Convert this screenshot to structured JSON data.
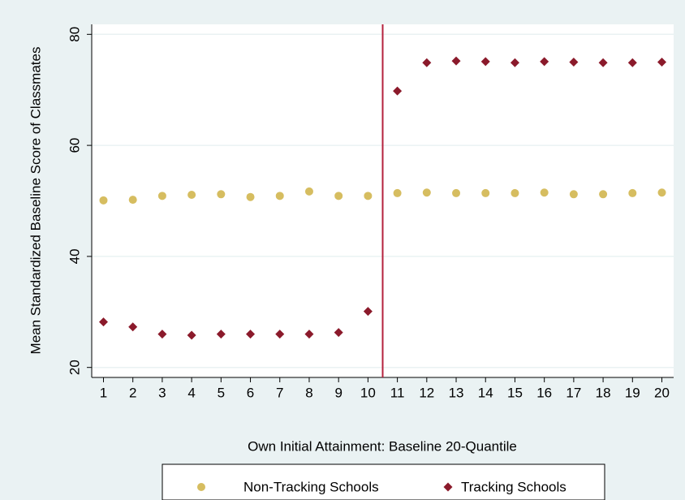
{
  "chart_data": {
    "type": "scatter",
    "y_label": "Mean Standardized Baseline Score of Classmates",
    "x_label": "Own Initial Attainment:  Baseline 20-Quantile",
    "x": [
      1,
      2,
      3,
      4,
      5,
      6,
      7,
      8,
      9,
      10,
      11,
      12,
      13,
      14,
      15,
      16,
      17,
      18,
      19,
      20
    ],
    "series": [
      {
        "name": "Non-Tracking Schools",
        "color": "#d6bd60",
        "marker": "circle",
        "values": [
          50.1,
          50.2,
          50.9,
          51.1,
          51.2,
          50.7,
          50.9,
          51.7,
          50.9,
          50.9,
          51.4,
          51.5,
          51.4,
          51.4,
          51.4,
          51.5,
          51.2,
          51.2,
          51.4,
          51.5
        ]
      },
      {
        "name": "Tracking Schools",
        "color": "#8b1a2b",
        "marker": "diamond",
        "values": [
          28.2,
          27.3,
          26.0,
          25.8,
          26.0,
          26.0,
          26.0,
          26.0,
          26.3,
          30.1,
          69.8,
          74.9,
          75.2,
          75.1,
          74.9,
          75.1,
          75.0,
          74.9,
          74.9,
          75.0
        ]
      }
    ],
    "xlim": [
      0.6,
      20.4
    ],
    "xticks": [
      1,
      2,
      3,
      4,
      5,
      6,
      7,
      8,
      9,
      10,
      11,
      12,
      13,
      14,
      15,
      16,
      17,
      18,
      19,
      20
    ],
    "ylim": [
      18.2,
      81.8
    ],
    "yticks": [
      20,
      40,
      60,
      80
    ],
    "xline": 10.5,
    "xline_color": "#b5213c",
    "grid": true,
    "legend": "bottom"
  }
}
